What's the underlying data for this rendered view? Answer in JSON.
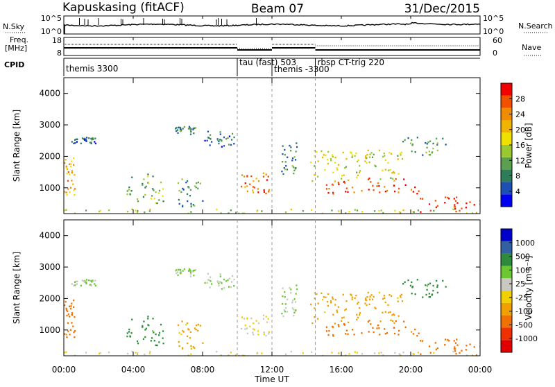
{
  "header": {
    "radar": "Kapuskasing (fitACF)",
    "beam": "Beam 07",
    "date": "31/Dec/2015"
  },
  "top_panel": {
    "nsky_label": "N.Sky",
    "nsky_ticks": [
      "10^5",
      "10^0"
    ],
    "nsearch_label": "N.Search",
    "nsearch_ticks": [
      "10^5",
      "10^0"
    ],
    "freq_label_line1": "Freq.",
    "freq_label_line2": "[MHz]",
    "freq_ticks": [
      "18",
      "8"
    ],
    "nave_label": "Nave",
    "nave_ticks": [
      "60",
      "0"
    ],
    "cpid_label": "CPID",
    "modes": [
      {
        "text": "themis 3300",
        "start_hour": 0.0
      },
      {
        "text": "tau (fast) 503",
        "start_hour": 10.0
      },
      {
        "text": "themis -3300",
        "start_hour": 12.0
      },
      {
        "text": "rbsp CT-trig 220",
        "start_hour": 14.5
      }
    ]
  },
  "axes": {
    "xlabel": "Time UT",
    "ylabel": "Slant Range [km]",
    "x_ticks": [
      "00:00",
      "04:00",
      "08:00",
      "12:00",
      "16:00",
      "20:00",
      "00:00"
    ],
    "y_ticks": [
      "1000",
      "2000",
      "3000",
      "4000"
    ]
  },
  "colorbars": {
    "power": {
      "label": "Power [dB]",
      "ticks": [
        "4",
        "8",
        "12",
        "16",
        "20",
        "24",
        "28"
      ],
      "colors": [
        "#0000f0",
        "#1e50b4",
        "#2e7d5a",
        "#5aa050",
        "#9ac832",
        "#f0e000",
        "#f0b400",
        "#f08c00",
        "#f05000",
        "#f00000"
      ]
    },
    "velocity": {
      "label": "Velocity [m s⁻¹]",
      "ticks": [
        "1000",
        "500",
        "100",
        "25",
        "-25",
        "-100",
        "-500",
        "-1000"
      ],
      "colors": [
        "#0000c8",
        "#3260a0",
        "#2e8b3c",
        "#6cc832",
        "#c8c8c0",
        "#f0d000",
        "#f0a000",
        "#f07000",
        "#f03000",
        "#e00000"
      ]
    }
  },
  "chart_data": {
    "type": "heatmap",
    "x_range_hours": [
      0,
      24
    ],
    "y_range_km": [
      180,
      4500
    ],
    "scatter_patches": [
      {
        "t0": 0.0,
        "t1": 0.6,
        "r0": 700,
        "r1": 2000,
        "power_dB": 20,
        "velocity": -500
      },
      {
        "t0": 0.3,
        "t1": 1.8,
        "r0": 2400,
        "r1": 2600,
        "power_dB": 6,
        "velocity": 25
      },
      {
        "t0": 3.6,
        "t1": 5.8,
        "r0": 500,
        "r1": 1500,
        "power_dB": 12,
        "velocity": 100
      },
      {
        "t0": 6.5,
        "t1": 8.0,
        "r0": 400,
        "r1": 1300,
        "power_dB": 10,
        "velocity": -100
      },
      {
        "t0": 6.4,
        "t1": 7.6,
        "r0": 2700,
        "r1": 2950,
        "power_dB": 8,
        "velocity": 25
      },
      {
        "t0": 8.0,
        "t1": 9.8,
        "r0": 2300,
        "r1": 2800,
        "power_dB": 6,
        "velocity": 25
      },
      {
        "t0": 10.2,
        "t1": 11.8,
        "r0": 800,
        "r1": 1500,
        "power_dB": 24,
        "velocity": -25
      },
      {
        "t0": 12.5,
        "t1": 13.5,
        "r0": 1400,
        "r1": 2500,
        "power_dB": 8,
        "velocity": 25
      },
      {
        "t0": 14.0,
        "t1": 19.5,
        "r0": 1200,
        "r1": 2200,
        "power_dB": 16,
        "velocity": -100
      },
      {
        "t0": 15.0,
        "t1": 20.5,
        "r0": 800,
        "r1": 1300,
        "power_dB": 26,
        "velocity": -500
      },
      {
        "t0": 19.5,
        "t1": 22.0,
        "r0": 2000,
        "r1": 2600,
        "power_dB": 10,
        "velocity": 100
      },
      {
        "t0": 20.5,
        "t1": 24.0,
        "r0": 200,
        "r1": 700,
        "power_dB": 28,
        "velocity": -500
      },
      {
        "t0": 0.0,
        "t1": 24.0,
        "r0": 180,
        "r1": 320,
        "power_dB": 14,
        "velocity": -25
      }
    ]
  }
}
